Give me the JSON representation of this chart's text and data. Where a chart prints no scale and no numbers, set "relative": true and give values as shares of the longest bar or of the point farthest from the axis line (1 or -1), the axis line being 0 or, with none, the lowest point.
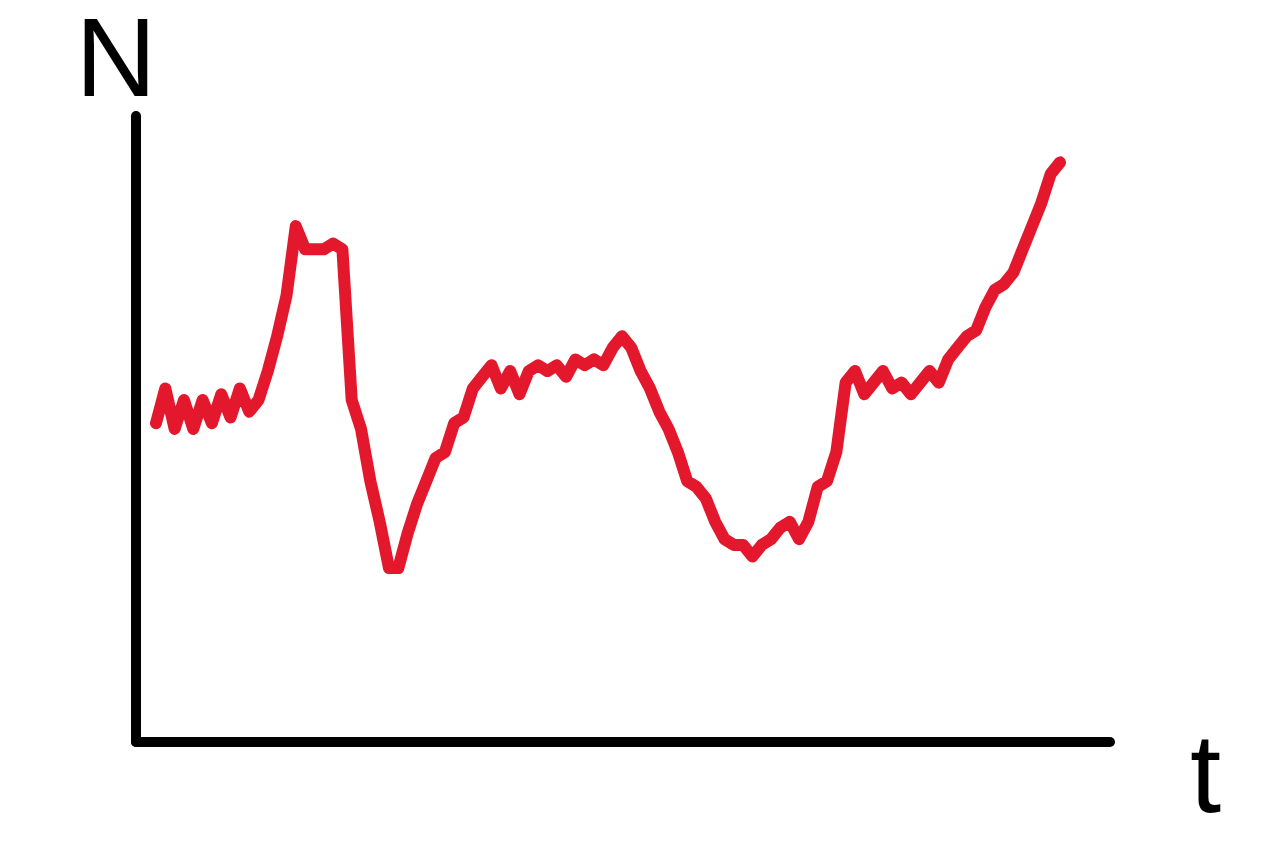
{
  "chart_data": {
    "type": "line",
    "relative": true,
    "xlabel": "t",
    "ylabel": "N",
    "legend": false,
    "grid": false,
    "marker": "none",
    "line_style": "solid",
    "categories": [
      null,
      null,
      null,
      null,
      null,
      null,
      null,
      null,
      null,
      null,
      null,
      null,
      null,
      null,
      null,
      null,
      null,
      null,
      null,
      null,
      null,
      null,
      null,
      null,
      null,
      null,
      null,
      null,
      null,
      null,
      null,
      null,
      null,
      null,
      null,
      null,
      null,
      null,
      null,
      null,
      null,
      null,
      null,
      null,
      null,
      null,
      null,
      null,
      null,
      null,
      null,
      null,
      null,
      null,
      null,
      null,
      null,
      null,
      null,
      null,
      null,
      null,
      null,
      null,
      null,
      null,
      null,
      null,
      null,
      null,
      null,
      null,
      null,
      null,
      null,
      null,
      null,
      null,
      null,
      null,
      null,
      null,
      null,
      null,
      null,
      null,
      null,
      null,
      null,
      null,
      null,
      null,
      null,
      null,
      null,
      null,
      null,
      null
    ],
    "series": [
      {
        "color": "#e3182d",
        "values": [
          0.55,
          0.61,
          0.54,
          0.59,
          0.54,
          0.59,
          0.55,
          0.6,
          0.56,
          0.61,
          0.57,
          0.59,
          0.64,
          0.7,
          0.77,
          0.89,
          0.85,
          0.85,
          0.85,
          0.86,
          0.85,
          0.59,
          0.54,
          0.45,
          0.38,
          0.3,
          0.3,
          0.36,
          0.41,
          0.45,
          0.49,
          0.5,
          0.55,
          0.56,
          0.61,
          0.63,
          0.65,
          0.61,
          0.64,
          0.6,
          0.64,
          0.65,
          0.64,
          0.65,
          0.63,
          0.66,
          0.65,
          0.66,
          0.65,
          0.68,
          0.7,
          0.68,
          0.64,
          0.61,
          0.57,
          0.54,
          0.5,
          0.45,
          0.44,
          0.42,
          0.38,
          0.35,
          0.34,
          0.34,
          0.32,
          0.34,
          0.35,
          0.37,
          0.38,
          0.35,
          0.38,
          0.44,
          0.45,
          0.5,
          0.62,
          0.64,
          0.6,
          0.62,
          0.64,
          0.61,
          0.62,
          0.6,
          0.62,
          0.64,
          0.62,
          0.66,
          0.68,
          0.7,
          0.71,
          0.75,
          0.78,
          0.79,
          0.81,
          0.85,
          0.89,
          0.93,
          0.98,
          1
        ]
      }
    ]
  }
}
